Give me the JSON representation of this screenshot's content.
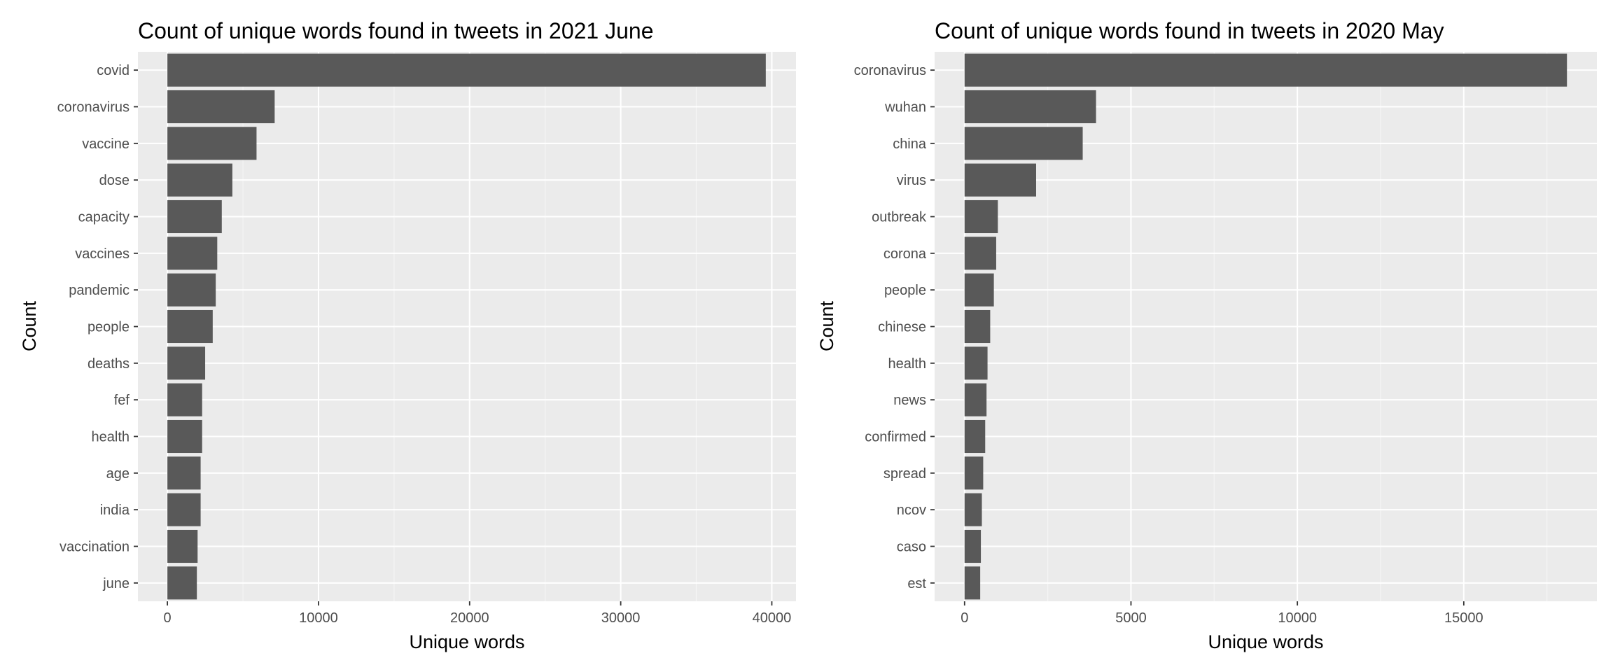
{
  "chart_data": [
    {
      "type": "bar",
      "orientation": "horizontal",
      "title": "Count of unique words found in tweets in 2021 June",
      "xlabel": "Unique words",
      "ylabel": "Count",
      "categories": [
        "covid",
        "coronavirus",
        "vaccine",
        "dose",
        "capacity",
        "vaccines",
        "pandemic",
        "people",
        "deaths",
        "fef",
        "health",
        "age",
        "india",
        "vaccination",
        "june"
      ],
      "values": [
        39600,
        7100,
        5900,
        4300,
        3600,
        3300,
        3200,
        3000,
        2500,
        2300,
        2300,
        2200,
        2200,
        2000,
        1950
      ],
      "xlim": [
        -1950,
        41600
      ],
      "xticks": [
        0,
        10000,
        20000,
        30000,
        40000
      ],
      "xtick_labels": [
        "0",
        "10000",
        "20000",
        "30000",
        "40000"
      ],
      "grid": true
    },
    {
      "type": "bar",
      "orientation": "horizontal",
      "title": "Count of unique words found in tweets in 2020 May",
      "xlabel": "Unique words",
      "ylabel": "Count",
      "categories": [
        "coronavirus",
        "wuhan",
        "china",
        "virus",
        "outbreak",
        "corona",
        "people",
        "chinese",
        "health",
        "news",
        "confirmed",
        "spread",
        "ncov",
        "caso",
        "est"
      ],
      "values": [
        18100,
        3950,
        3550,
        2150,
        1000,
        950,
        880,
        770,
        690,
        660,
        620,
        560,
        520,
        490,
        470
      ],
      "xlim": [
        -900,
        19000
      ],
      "xticks": [
        0,
        5000,
        10000,
        15000
      ],
      "xtick_labels": [
        "0",
        "5000",
        "10000",
        "15000"
      ],
      "grid": true
    }
  ]
}
